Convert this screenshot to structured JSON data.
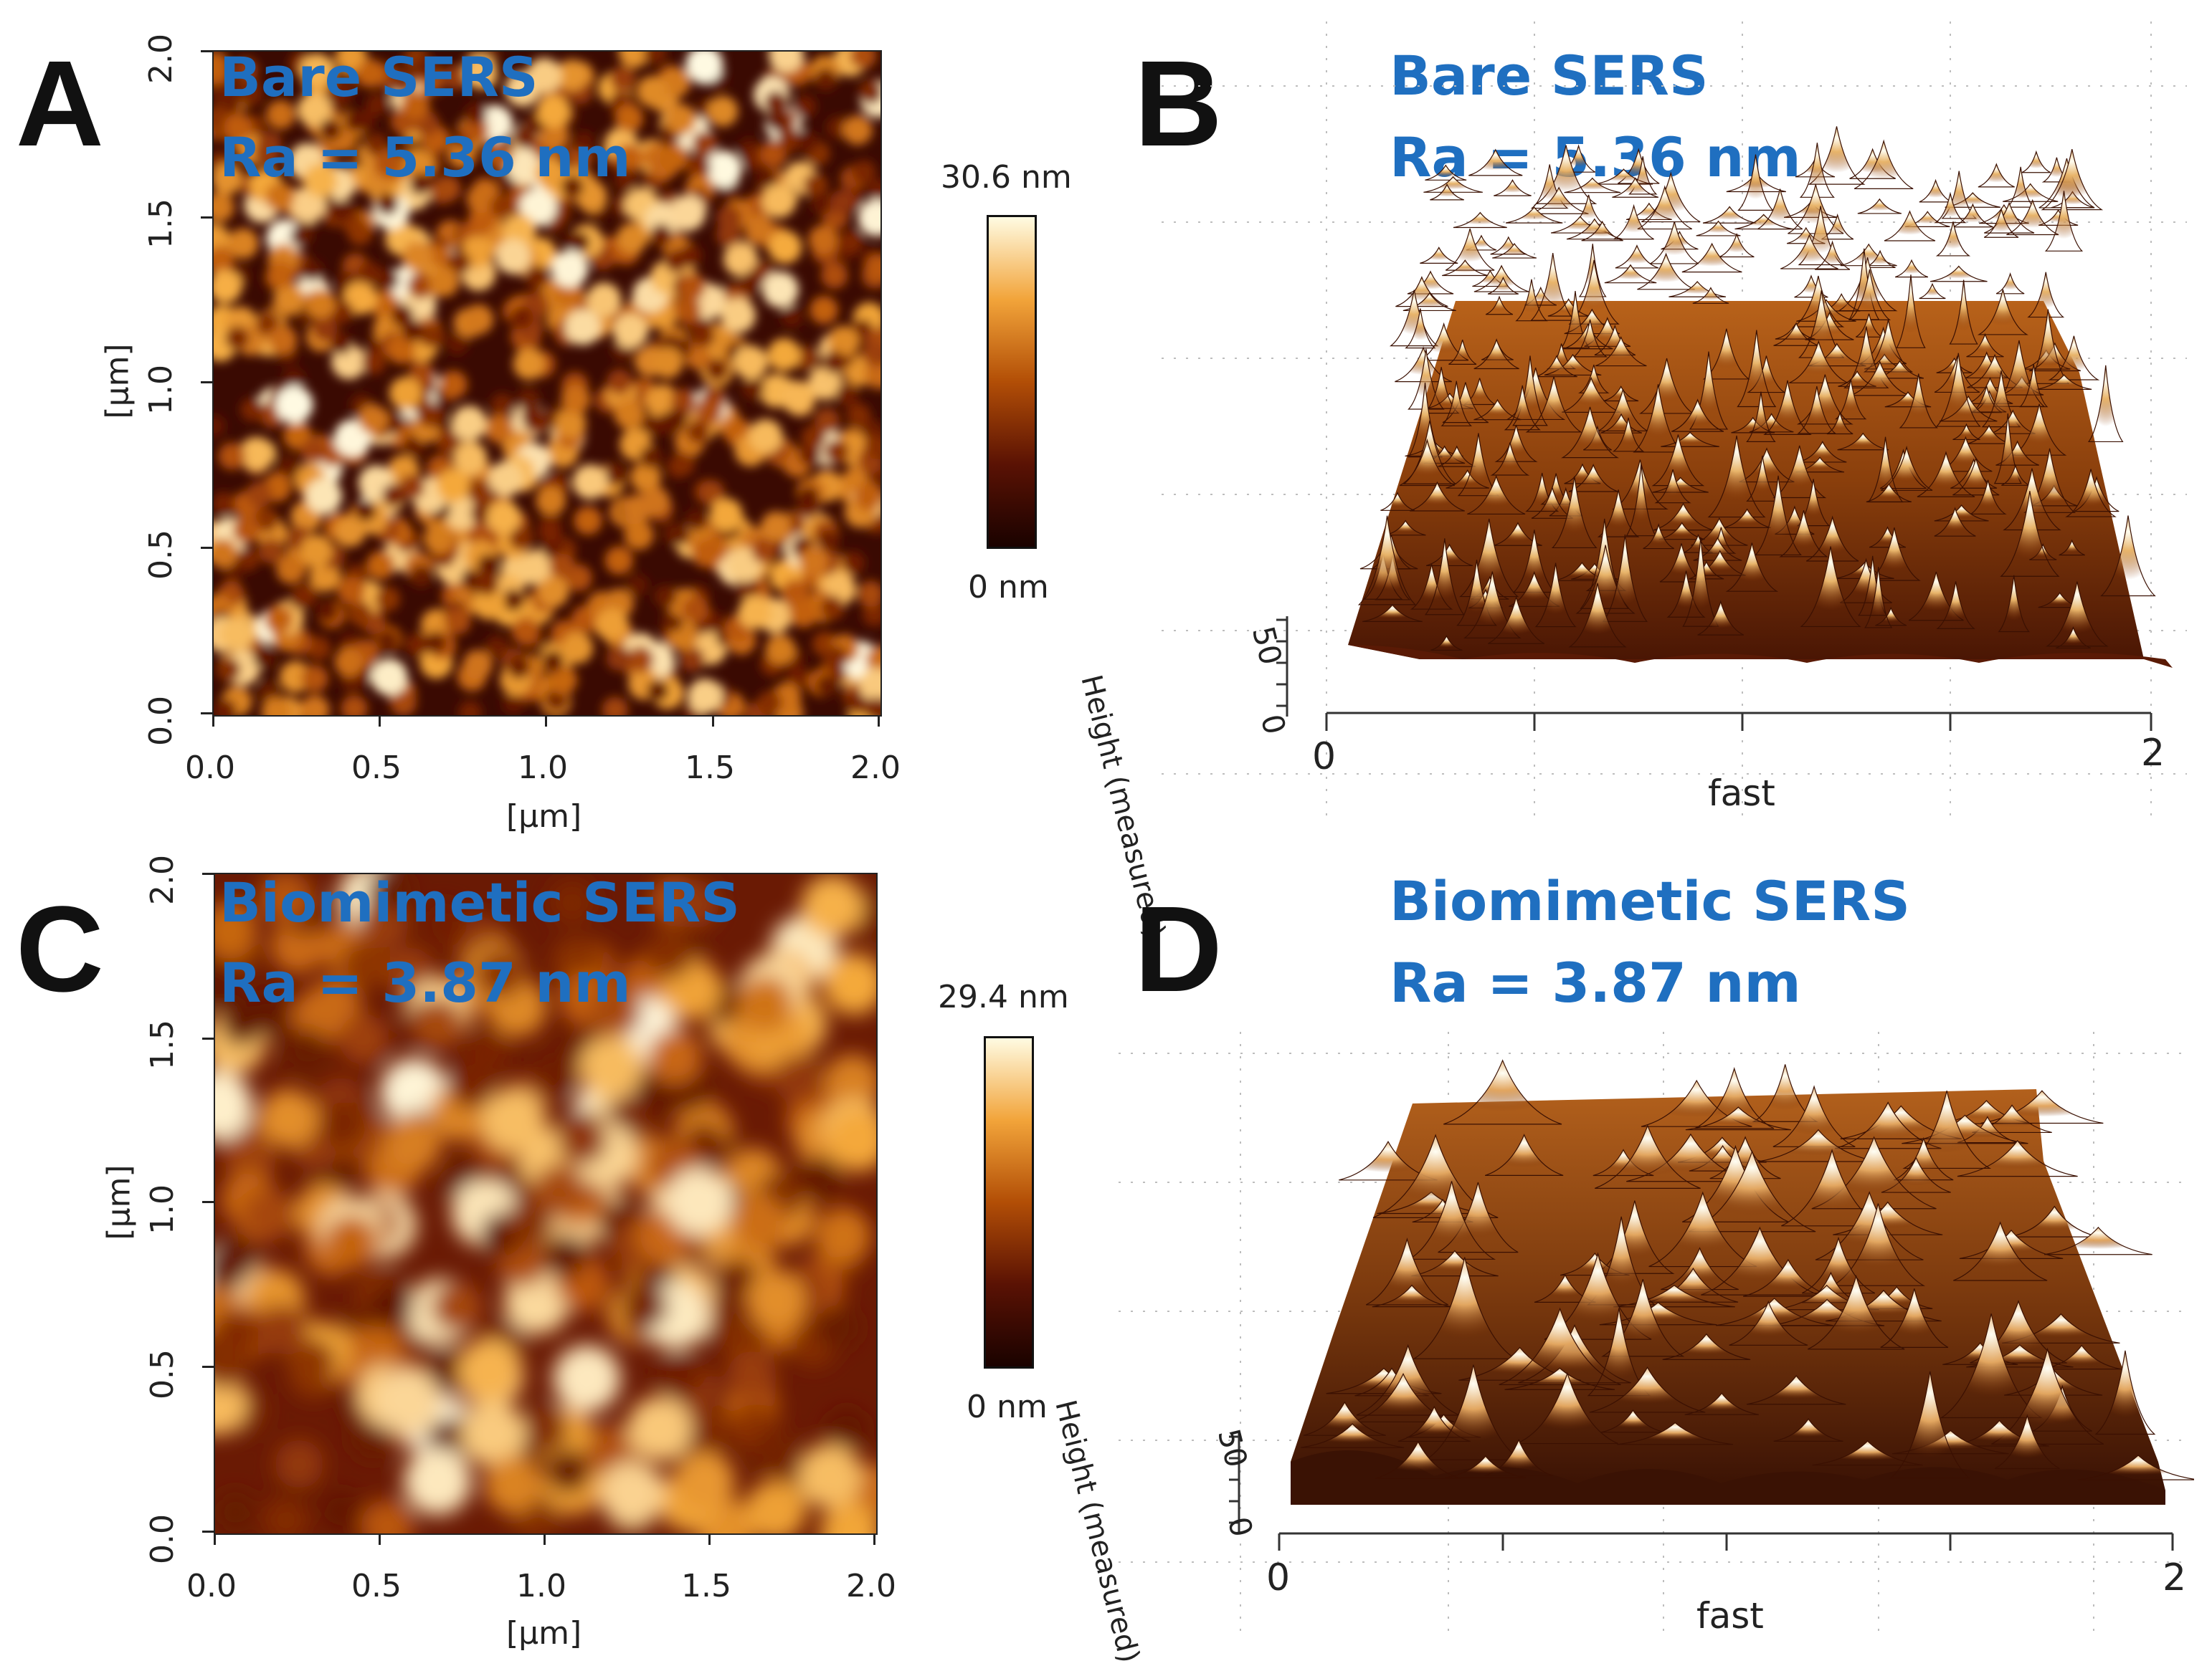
{
  "panels": {
    "A": {
      "letter": "A",
      "title": "Bare SERS",
      "ra": "Ra = 5.36 nm",
      "x_ticks": [
        "0.0",
        "0.5",
        "1.0",
        "1.5",
        "2.0"
      ],
      "y_ticks": [
        "0.0",
        "0.5",
        "1.0",
        "1.5",
        "2.0"
      ],
      "x_label": "[µm]",
      "y_label": "[µm]",
      "colorbar_max": "30.6 nm",
      "colorbar_min": "0 nm"
    },
    "B": {
      "letter": "B",
      "title": "Bare SERS",
      "ra": "Ra = 5.36 nm",
      "x_start": "0",
      "x_end": "2",
      "x_label": "fast",
      "z_label": "Height (measured)",
      "z_50": "50",
      "z_0": "0"
    },
    "C": {
      "letter": "C",
      "title": "Biomimetic SERS",
      "ra": "Ra = 3.87 nm",
      "x_ticks": [
        "0.0",
        "0.5",
        "1.0",
        "1.5",
        "2.0"
      ],
      "y_ticks": [
        "0.0",
        "0.5",
        "1.0",
        "1.5",
        "2.0"
      ],
      "x_label": "[µm]",
      "y_label": "[µm]",
      "colorbar_max": "29.4 nm",
      "colorbar_min": "0 nm"
    },
    "D": {
      "letter": "D",
      "title": "Biomimetic SERS",
      "ra": "Ra = 3.87 nm",
      "x_start": "0",
      "x_end": "2",
      "x_label": "fast",
      "z_label": "Height (measured)",
      "z_50": "50",
      "z_0": "0"
    }
  },
  "colors": {
    "title_blue": "#1f6fc0",
    "afm_dark": "#2a0600",
    "afm_mid": "#b85a08",
    "afm_light": "#fff8dc"
  }
}
